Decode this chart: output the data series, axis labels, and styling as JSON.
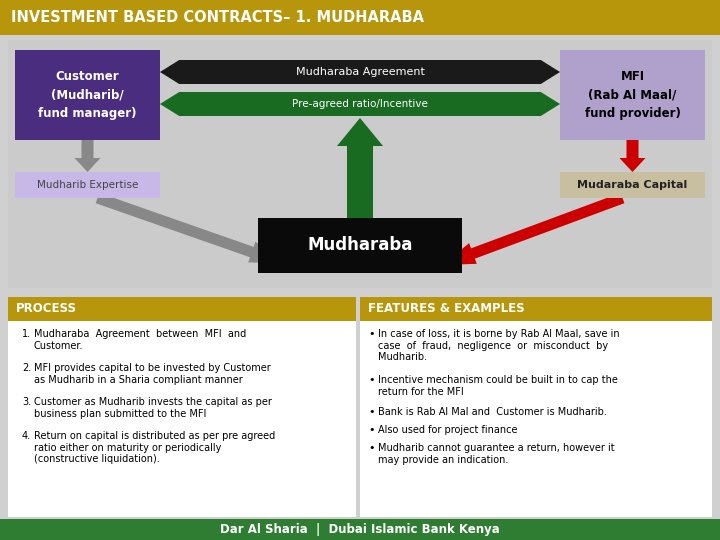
{
  "title": "INVESTMENT BASED CONTRACTS– 1. MUDHARABA",
  "title_bg": "#B8960C",
  "title_color": "#FFFFFF",
  "bg_color": "#D0D0D0",
  "diagram_bg": "#D8D8D8",
  "customer_box": {
    "text": "Customer\n(Mudharib/\nfund manager)",
    "bg": "#4B2D7F",
    "color": "#FFFFFF"
  },
  "mfi_box": {
    "text": "MFI\n(Rab Al Maal/\nfund provider)",
    "bg": "#B0A0CC",
    "color": "#000000"
  },
  "agreement_bar_bg": "#1A1A1A",
  "agreement_text": "Mudharaba Agreement",
  "ratio_bar_bg": "#1A6B22",
  "ratio_text": "Pre-agreed ratio/Incentive",
  "mudharib_box": {
    "text": "Mudharib Expertise",
    "bg": "#C8B8E8",
    "color": "#444444"
  },
  "mudaraba_box": {
    "text": "Mudaraba Capital",
    "bg": "#C8BFA0",
    "color": "#222222"
  },
  "mudharaba_box": {
    "text": "Mudharaba",
    "bg": "#0A0A0A",
    "color": "#FFFFFF"
  },
  "process_header": {
    "text": "PROCESS",
    "bg": "#B8960C",
    "color": "#FFFFFF"
  },
  "features_header": {
    "text": "FEATURES & EXAMPLES",
    "bg": "#B8960C",
    "color": "#FFFFFF"
  },
  "process_items": [
    "Mudharaba  Agreement  between  MFI  and\nCustomer.",
    "MFI provides capital to be invested by Customer\nas Mudharib in a Sharia compliant manner",
    "Customer as Mudharib invests the capital as per\nbusiness plan submitted to the MFI",
    "Return on capital is distributed as per pre agreed\nratio either on maturity or periodically\n(constructive liquidation)."
  ],
  "features_items": [
    "In case of loss, it is borne by Rab Al Maal, save in\ncase  of  fraud,  negligence  or  misconduct  by\nMudharib.",
    "Incentive mechanism could be built in to cap the\nreturn for the MFI",
    "Bank is Rab Al Mal and  Customer is Mudharib.",
    "Also used for project finance",
    "Mudharib cannot guarantee a return, however it\nmay provide an indication."
  ],
  "footer_text": "Dar Al Sharia  |  Dubai Islamic Bank Kenya",
  "footer_bg": "#2E7D32",
  "footer_color": "#FFFFFF"
}
